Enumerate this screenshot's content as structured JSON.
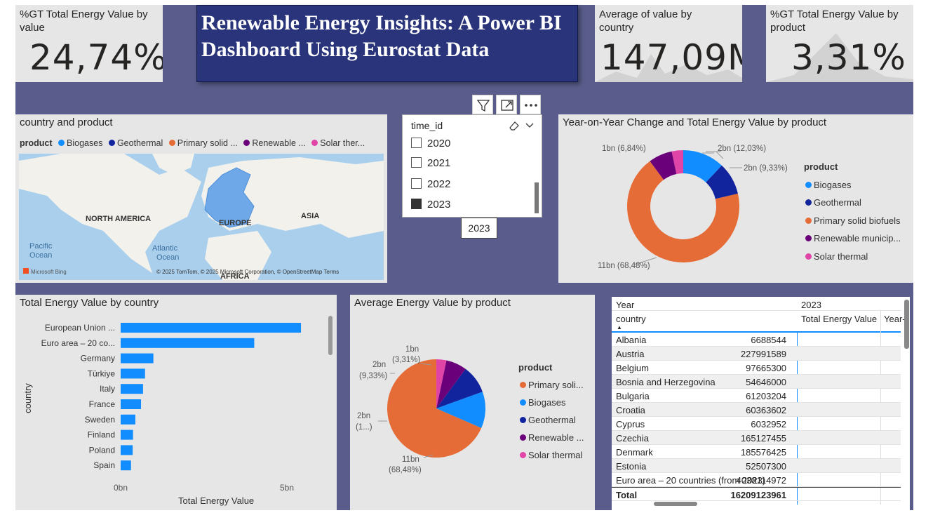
{
  "kpis": [
    {
      "title": "%GT Total Energy Value by value",
      "value": "24,74%"
    },
    {
      "title": "Average of value by country",
      "value": "147,09M"
    },
    {
      "title": "%GT Total Energy Value by product",
      "value": "3,31%"
    }
  ],
  "dashboard_title": "Renewable Energy Insights: A Power BI Dashboard Using Eurostat Data",
  "map": {
    "title": "country and product",
    "legend_label": "product",
    "legend": [
      {
        "name": "Biogases",
        "color": "#118dff"
      },
      {
        "name": "Geothermal",
        "color": "#12239e"
      },
      {
        "name": "Primary solid ...",
        "color": "#e66c37"
      },
      {
        "name": "Renewable ...",
        "color": "#6b007b"
      },
      {
        "name": "Solar ther...",
        "color": "#e044a7"
      }
    ],
    "labels": {
      "na": "NORTH AMERICA",
      "eu": "EUROPE",
      "asia": "ASIA",
      "africa": "AFRICA",
      "pacific": "Pacific\nOcean",
      "atlantic": "Atlantic\nOcean"
    },
    "bing": "Microsoft Bing",
    "attribution": "© 2025 TomTom, © 2025 Microsoft Corporation, © OpenStreetMap  Terms"
  },
  "slicer": {
    "field": "time_id",
    "items": [
      {
        "label": "2020",
        "checked": false
      },
      {
        "label": "2021",
        "checked": false
      },
      {
        "label": "2022",
        "checked": false
      },
      {
        "label": "2023",
        "checked": true
      }
    ],
    "tooltip": "2023",
    "icons": [
      "filter-icon",
      "focus-mode-icon",
      "more-options-icon"
    ]
  },
  "donut": {
    "title": "Year-on-Year Change and Total Energy Value by product",
    "legend_title": "product",
    "legend": [
      "Biogases",
      "Geothermal",
      "Primary solid biofuels",
      "Renewable municip...",
      "Solar thermal"
    ],
    "data_labels": [
      "2bn (12,03%)",
      "2bn (9,33%)",
      "11bn (68,48%)",
      "1bn (6,84%)"
    ]
  },
  "bar": {
    "title": "Total Energy Value by country",
    "ylabel": "country",
    "xlabel": "Total Energy Value",
    "ticks": [
      "0bn",
      "5bn"
    ]
  },
  "pie": {
    "title": "Average Energy Value by product",
    "legend_title": "product",
    "legend": [
      "Primary soli...",
      "Biogases",
      "Geothermal",
      "Renewable ...",
      "Solar thermal"
    ],
    "labels": {
      "a1": "1bn",
      "a2": "(3,31%)",
      "b1": "2bn",
      "b2": "(9,33%)",
      "c1": "2bn",
      "c2": "(1...)",
      "d1": "11bn",
      "d2": "(68,48%)"
    }
  },
  "table": {
    "header_year_label": "Year",
    "header_year_value": "2023",
    "col_country": "country",
    "col_value": "Total Energy Value",
    "col_extra": "Year-",
    "rows": [
      {
        "country": "Albania",
        "value": "6688544"
      },
      {
        "country": "Austria",
        "value": "227991589"
      },
      {
        "country": "Belgium",
        "value": "97665300"
      },
      {
        "country": "Bosnia and Herzegovina",
        "value": "54646000"
      },
      {
        "country": "Bulgaria",
        "value": "61203204"
      },
      {
        "country": "Croatia",
        "value": "60363602"
      },
      {
        "country": "Cyprus",
        "value": "6032952"
      },
      {
        "country": "Czechia",
        "value": "165127455"
      },
      {
        "country": "Denmark",
        "value": "185576425"
      },
      {
        "country": "Estonia",
        "value": "52507300"
      },
      {
        "country": "Euro area – 20 countries (from 2023)",
        "value": "4038114972"
      }
    ],
    "total_label": "Total",
    "total_value": "16209123961"
  },
  "chart_data": [
    {
      "type": "bar",
      "title": "Total Energy Value by country",
      "xlabel": "Total Energy Value",
      "ylabel": "country",
      "categories": [
        "European Union ...",
        "Euro area – 20 co...",
        "Germany",
        "Türkiye",
        "Italy",
        "France",
        "Sweden",
        "Finland",
        "Poland",
        "Spain"
      ],
      "values": [
        5.4,
        4.0,
        0.98,
        0.73,
        0.67,
        0.61,
        0.44,
        0.37,
        0.36,
        0.31
      ],
      "unit": "bn",
      "xlim": [
        0,
        6.0
      ],
      "color": "#118dff"
    },
    {
      "type": "pie",
      "donut": true,
      "title": "Year-on-Year Change and Total Energy Value by product",
      "categories": [
        "Biogases",
        "Geothermal",
        "Primary solid biofuels",
        "Renewable municip...",
        "Solar thermal"
      ],
      "values": [
        12.03,
        9.33,
        68.48,
        6.84,
        3.31
      ],
      "colors": [
        "#118dff",
        "#12239e",
        "#e66c37",
        "#6b007b",
        "#e044a7"
      ]
    },
    {
      "type": "pie",
      "title": "Average Energy Value by product",
      "categories": [
        "Primary soli...",
        "Biogases",
        "Geothermal",
        "Renewable ...",
        "Solar thermal"
      ],
      "values": [
        68.48,
        12.03,
        9.33,
        6.84,
        3.31
      ],
      "colors": [
        "#e66c37",
        "#118dff",
        "#12239e",
        "#6b007b",
        "#e044a7"
      ]
    }
  ]
}
